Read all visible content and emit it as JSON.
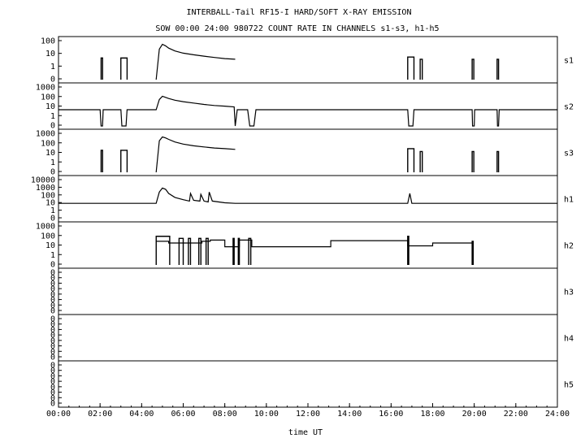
{
  "chart_data": {
    "type": "line",
    "title": "INTERBALL-Tail RF15-I HARD/SOFT X-RAY EMISSION",
    "subtitle": "SOW 00:00 24:00 980722  COUNT RATE IN CHANNELS s1-s3, h1-h5",
    "xlabel": "time UT",
    "x_ticks": [
      "00:00",
      "02:00",
      "04:00",
      "06:00",
      "08:00",
      "10:00",
      "12:00",
      "14:00",
      "16:00",
      "18:00",
      "20:00",
      "22:00",
      "24:00"
    ],
    "xlim": [
      0,
      24
    ],
    "y_scale": "log",
    "grid": false,
    "panels": [
      {
        "name": "s1",
        "y_ticks": [
          "100",
          "10",
          "1",
          "0"
        ],
        "ylim_decades": [
          -1,
          2
        ],
        "bursts": [
          [
            2.05,
            2.12,
            5
          ],
          [
            3.0,
            3.3,
            5
          ],
          [
            16.8,
            17.1,
            6
          ],
          [
            17.4,
            17.5,
            4
          ],
          [
            19.9,
            19.98,
            4
          ],
          [
            21.1,
            21.17,
            4
          ]
        ],
        "series": [
          {
            "x": [
              4.7,
              4.85,
              5.0,
              5.15,
              5.3,
              5.6,
              6.0,
              6.5,
              7.0,
              7.5,
              8.0,
              8.5
            ],
            "y": [
              0.1,
              25,
              60,
              45,
              30,
              18,
              12,
              9,
              7,
              5.5,
              4.5,
              4
            ]
          }
        ]
      },
      {
        "name": "s2",
        "y_ticks": [
          "1000",
          "100",
          "10",
          "1",
          "0"
        ],
        "ylim_decades": [
          -1,
          3
        ],
        "bursts": [],
        "series": [
          {
            "x": [
              0,
              2.0,
              2.05,
              2.12,
              2.15,
              3.0,
              3.05,
              3.25,
              3.3,
              4.7,
              4.85,
              5.0,
              5.15,
              5.3,
              5.6,
              6.0,
              6.5,
              7.0,
              7.5,
              8.0,
              8.45,
              8.5,
              8.6,
              9.1,
              9.2,
              9.4,
              9.5,
              16.8,
              16.85,
              17.05,
              17.1,
              19.9,
              19.92,
              20.0,
              20.02,
              21.1,
              21.12,
              21.17,
              21.2,
              24
            ],
            "y": [
              5,
              5,
              0.1,
              0.1,
              5,
              5,
              0.1,
              0.1,
              5,
              5,
              60,
              130,
              100,
              75,
              50,
              35,
              25,
              18,
              14,
              12,
              10,
              0.1,
              5,
              5,
              0.1,
              0.1,
              5,
              5,
              0.1,
              0.1,
              5,
              5,
              0.1,
              0.1,
              5,
              5,
              0.1,
              0.1,
              5,
              5
            ]
          }
        ]
      },
      {
        "name": "s3",
        "y_ticks": [
          "1000",
          "100",
          "10",
          "1",
          "0"
        ],
        "ylim_decades": [
          -1,
          3
        ],
        "bursts": [
          [
            2.05,
            2.12,
            20
          ],
          [
            3.0,
            3.3,
            20
          ],
          [
            16.8,
            17.1,
            30
          ],
          [
            17.4,
            17.5,
            15
          ],
          [
            19.9,
            19.98,
            15
          ],
          [
            21.1,
            21.17,
            15
          ]
        ],
        "series": [
          {
            "x": [
              4.7,
              4.85,
              5.0,
              5.15,
              5.3,
              5.6,
              6.0,
              6.5,
              7.0,
              7.5,
              8.0,
              8.5
            ],
            "y": [
              0.1,
              200,
              500,
              400,
              280,
              150,
              90,
              60,
              45,
              35,
              30,
              25
            ]
          }
        ]
      },
      {
        "name": "h1",
        "y_ticks": [
          "10000",
          "1000",
          "100",
          "10",
          "1",
          "0"
        ],
        "ylim_decades": [
          -1,
          4
        ],
        "bursts": [],
        "series": [
          {
            "x": [
              0,
              4.7,
              4.85,
              5.0,
              5.15,
              5.3,
              5.6,
              6.0,
              6.3,
              6.35,
              6.5,
              6.8,
              6.85,
              7.0,
              7.2,
              7.25,
              7.4,
              8.0,
              8.5,
              16.8,
              16.9,
              17.0,
              24
            ],
            "y": [
              10,
              10,
              300,
              1000,
              700,
              200,
              60,
              30,
              20,
              200,
              25,
              20,
              150,
              20,
              15,
              300,
              20,
              12,
              10,
              10,
              200,
              10,
              10
            ]
          }
        ]
      },
      {
        "name": "h2",
        "y_ticks": [
          "1000",
          "100",
          "10",
          "1",
          "0"
        ],
        "ylim_decades": [
          -1,
          3
        ],
        "bursts": [
          [
            4.7,
            5.35,
            100
          ],
          [
            5.8,
            6.0,
            60
          ],
          [
            6.25,
            6.35,
            60
          ],
          [
            6.75,
            6.85,
            60
          ],
          [
            7.1,
            7.2,
            60
          ],
          [
            8.4,
            8.45,
            60
          ],
          [
            8.65,
            8.7,
            60
          ],
          [
            9.15,
            9.25,
            60
          ],
          [
            16.8,
            16.85,
            100
          ],
          [
            19.9,
            19.95,
            30
          ]
        ],
        "series": [
          {
            "x": [
              4.7,
              5.3,
              5.3,
              6.9,
              6.9,
              7.3,
              7.3,
              8.0,
              8.0,
              8.7,
              8.7,
              9.3,
              9.3,
              13.1,
              13.1,
              16.8,
              16.8,
              18.0,
              18.0,
              19.9
            ],
            "y": [
              30,
              30,
              20,
              20,
              30,
              30,
              40,
              40,
              8,
              8,
              40,
              40,
              8,
              8,
              35,
              35,
              10,
              10,
              20,
              20
            ]
          }
        ]
      },
      {
        "name": "h3",
        "y_ticks": [
          "0",
          "0",
          "0",
          "0",
          "0",
          "0",
          "0",
          "0"
        ],
        "ylim_decades": [
          -1,
          1
        ],
        "bursts": [],
        "series": []
      },
      {
        "name": "h4",
        "y_ticks": [
          "0",
          "0",
          "0",
          "0",
          "0",
          "0",
          "0",
          "0"
        ],
        "ylim_decades": [
          -1,
          1
        ],
        "bursts": [],
        "series": []
      },
      {
        "name": "h5",
        "y_ticks": [
          "0",
          "0",
          "0",
          "0",
          "0",
          "0",
          "0",
          "0"
        ],
        "ylim_decades": [
          -1,
          1
        ],
        "bursts": [],
        "series": []
      }
    ]
  }
}
